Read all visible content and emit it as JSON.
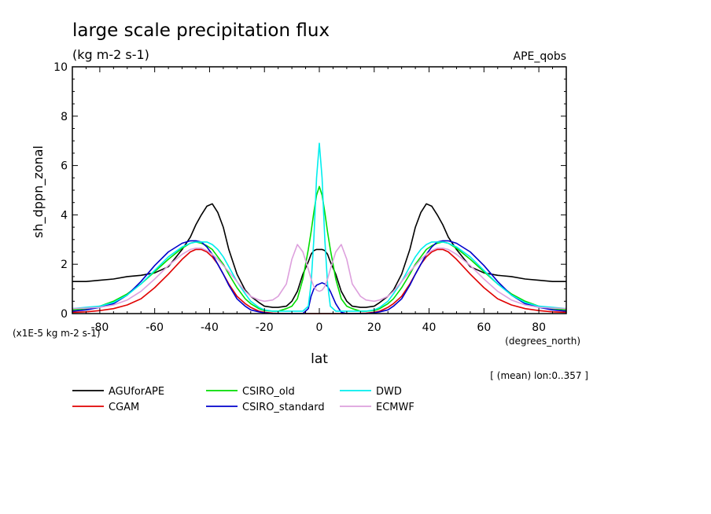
{
  "chart_data": {
    "type": "line",
    "title": "large scale precipitation flux",
    "subtitle": "(kg m-2 s-1)",
    "dataset_label": "APE_qobs",
    "ylabel": "sh_dppn_zonal",
    "yscale_note": "(x1E-5 kg m-2 s-1)",
    "xlabel": "lat",
    "xunits": "(degrees_north)",
    "range_note": "[ (mean) lon:0..357 ]",
    "xlim": [
      -90,
      90
    ],
    "ylim": [
      0,
      10
    ],
    "xticks": [
      -80,
      -60,
      -40,
      -20,
      0,
      20,
      40,
      60,
      80
    ],
    "xtick_labels": [
      "-80",
      "-60",
      "-40",
      "-20",
      "0",
      "20",
      "40",
      "60",
      "80"
    ],
    "yticks": [
      0,
      2,
      4,
      6,
      8,
      10
    ],
    "ytick_labels": [
      "0",
      "2",
      "4",
      "6",
      "8",
      "10"
    ],
    "legend_placement": "bottom",
    "x": [
      -90,
      -85,
      -80,
      -75,
      -70,
      -65,
      -60,
      -55,
      -50,
      -47,
      -45,
      -43,
      -41,
      -39,
      -37,
      -35,
      -33,
      -30,
      -27,
      -25,
      -22,
      -20,
      -17,
      -15,
      -12,
      -10,
      -8,
      -6,
      -4,
      -3,
      -2,
      -1,
      0,
      1,
      2,
      3,
      4,
      6,
      8,
      10,
      12,
      15,
      17,
      20,
      22,
      25,
      27,
      30,
      33,
      35,
      37,
      39,
      41,
      43,
      45,
      47,
      50,
      55,
      60,
      65,
      70,
      75,
      80,
      85,
      90
    ],
    "series": [
      {
        "name": "AGUforAPE",
        "color": "#000000",
        "values": [
          1.3,
          1.3,
          1.35,
          1.4,
          1.5,
          1.55,
          1.65,
          1.9,
          2.6,
          3.1,
          3.6,
          4.0,
          4.35,
          4.45,
          4.1,
          3.5,
          2.6,
          1.6,
          0.95,
          0.7,
          0.45,
          0.3,
          0.25,
          0.25,
          0.3,
          0.5,
          0.9,
          1.6,
          2.1,
          2.4,
          2.55,
          2.6,
          2.6,
          2.6,
          2.55,
          2.4,
          2.1,
          1.6,
          0.9,
          0.5,
          0.3,
          0.25,
          0.25,
          0.3,
          0.45,
          0.7,
          0.95,
          1.6,
          2.6,
          3.5,
          4.1,
          4.45,
          4.35,
          4.0,
          3.6,
          3.1,
          2.6,
          1.9,
          1.65,
          1.55,
          1.5,
          1.4,
          1.35,
          1.3,
          1.3
        ]
      },
      {
        "name": "CGAM",
        "color": "#e00000",
        "values": [
          0.05,
          0.07,
          0.12,
          0.2,
          0.35,
          0.6,
          1.05,
          1.6,
          2.2,
          2.5,
          2.6,
          2.6,
          2.5,
          2.3,
          2.0,
          1.6,
          1.2,
          0.7,
          0.4,
          0.25,
          0.1,
          0.05,
          0.02,
          0.01,
          0.0,
          0.0,
          0.0,
          0.0,
          0.0,
          0.0,
          0.0,
          0.0,
          0.0,
          0.0,
          0.0,
          0.0,
          0.0,
          0.0,
          0.0,
          0.0,
          0.0,
          0.01,
          0.02,
          0.05,
          0.1,
          0.25,
          0.4,
          0.7,
          1.2,
          1.6,
          2.0,
          2.3,
          2.5,
          2.6,
          2.6,
          2.5,
          2.2,
          1.6,
          1.05,
          0.6,
          0.35,
          0.2,
          0.12,
          0.07,
          0.05
        ]
      },
      {
        "name": "CSIRO_old",
        "color": "#00dd00",
        "values": [
          0.15,
          0.2,
          0.3,
          0.5,
          0.8,
          1.2,
          1.7,
          2.2,
          2.65,
          2.85,
          2.9,
          2.85,
          2.75,
          2.6,
          2.3,
          2.0,
          1.6,
          1.05,
          0.6,
          0.4,
          0.2,
          0.12,
          0.1,
          0.1,
          0.2,
          0.3,
          0.6,
          1.4,
          2.6,
          3.3,
          4.1,
          4.8,
          5.15,
          4.8,
          4.1,
          3.3,
          2.6,
          1.4,
          0.6,
          0.3,
          0.2,
          0.1,
          0.1,
          0.12,
          0.2,
          0.4,
          0.6,
          1.05,
          1.6,
          2.0,
          2.3,
          2.6,
          2.75,
          2.85,
          2.9,
          2.85,
          2.65,
          2.2,
          1.7,
          1.2,
          0.8,
          0.5,
          0.3,
          0.2,
          0.15
        ]
      },
      {
        "name": "CSIRO_standard",
        "color": "#0000cc",
        "values": [
          0.1,
          0.15,
          0.25,
          0.4,
          0.75,
          1.3,
          1.95,
          2.5,
          2.85,
          2.95,
          2.95,
          2.9,
          2.7,
          2.4,
          2.0,
          1.6,
          1.15,
          0.6,
          0.3,
          0.15,
          0.07,
          0.03,
          0.0,
          0.0,
          0.0,
          0.0,
          0.0,
          0.0,
          0.2,
          0.7,
          1.0,
          1.15,
          1.2,
          1.25,
          1.2,
          1.1,
          0.9,
          0.4,
          0.05,
          0.0,
          0.0,
          0.0,
          0.0,
          0.03,
          0.07,
          0.15,
          0.3,
          0.6,
          1.15,
          1.6,
          2.0,
          2.4,
          2.7,
          2.9,
          2.95,
          2.95,
          2.85,
          2.5,
          1.95,
          1.3,
          0.75,
          0.4,
          0.25,
          0.15,
          0.1
        ]
      },
      {
        "name": "DWD",
        "color": "#00eeee",
        "values": [
          0.2,
          0.25,
          0.3,
          0.45,
          0.75,
          1.2,
          1.75,
          2.3,
          2.7,
          2.85,
          2.9,
          2.9,
          2.9,
          2.8,
          2.6,
          2.3,
          1.9,
          1.3,
          0.8,
          0.5,
          0.25,
          0.15,
          0.1,
          0.1,
          0.1,
          0.1,
          0.1,
          0.1,
          0.3,
          1.2,
          3.0,
          5.5,
          6.9,
          5.5,
          3.0,
          1.2,
          0.3,
          0.1,
          0.1,
          0.1,
          0.1,
          0.1,
          0.1,
          0.15,
          0.25,
          0.5,
          0.8,
          1.3,
          1.9,
          2.3,
          2.6,
          2.8,
          2.9,
          2.9,
          2.9,
          2.85,
          2.7,
          2.3,
          1.75,
          1.2,
          0.75,
          0.45,
          0.3,
          0.25,
          0.2
        ]
      },
      {
        "name": "ECMWF",
        "color": "#dda0dd",
        "values": [
          0.2,
          0.22,
          0.25,
          0.35,
          0.55,
          0.9,
          1.4,
          1.95,
          2.4,
          2.6,
          2.65,
          2.65,
          2.55,
          2.4,
          2.2,
          1.95,
          1.7,
          1.3,
          0.9,
          0.7,
          0.55,
          0.5,
          0.55,
          0.7,
          1.2,
          2.2,
          2.8,
          2.5,
          1.8,
          1.4,
          1.1,
          0.95,
          0.9,
          0.95,
          1.1,
          1.4,
          1.8,
          2.5,
          2.8,
          2.2,
          1.2,
          0.7,
          0.55,
          0.5,
          0.55,
          0.7,
          0.9,
          1.3,
          1.7,
          1.95,
          2.2,
          2.4,
          2.55,
          2.65,
          2.65,
          2.6,
          2.4,
          1.95,
          1.4,
          0.9,
          0.55,
          0.35,
          0.25,
          0.22,
          0.2
        ]
      }
    ]
  }
}
